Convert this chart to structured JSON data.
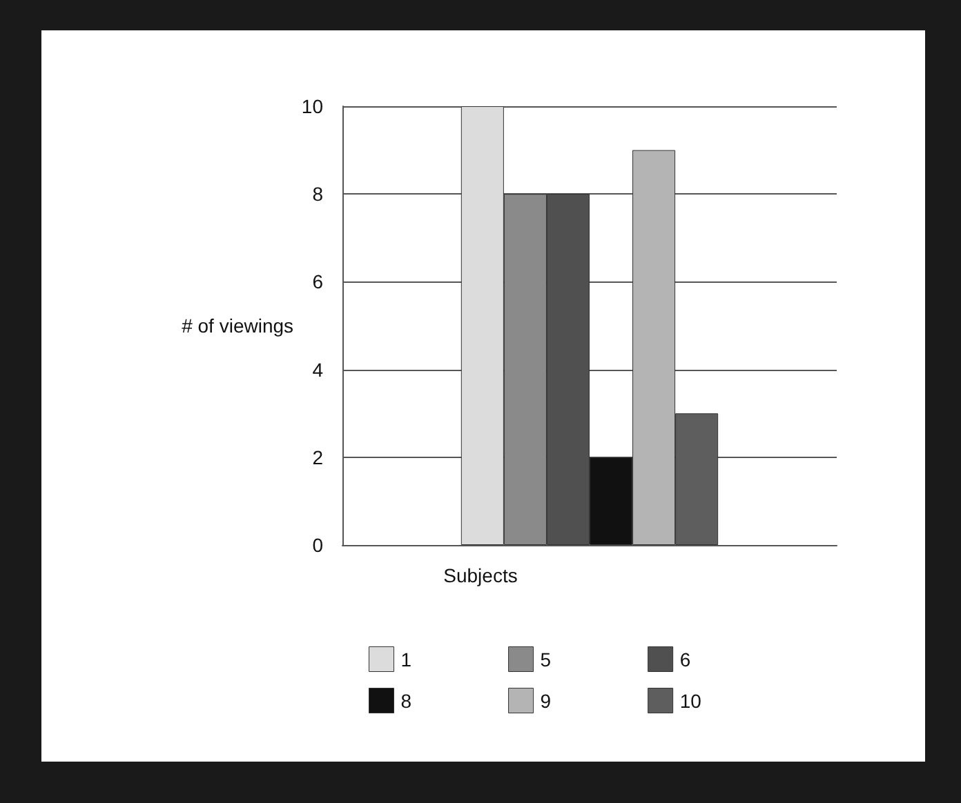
{
  "chart_data": {
    "type": "bar",
    "ylabel": "# of viewings",
    "legend_title": "Subjects",
    "categories": [
      null
    ],
    "series": [
      {
        "name": "1",
        "color": "#dcdcdc",
        "values": [
          10
        ]
      },
      {
        "name": "5",
        "color": "#8a8a8a",
        "values": [
          8
        ]
      },
      {
        "name": "6",
        "color": "#505050",
        "values": [
          8
        ]
      },
      {
        "name": "8",
        "color": "#111111",
        "values": [
          2
        ]
      },
      {
        "name": "9",
        "color": "#b4b4b4",
        "values": [
          9
        ]
      },
      {
        "name": "10",
        "color": "#5e5e5e",
        "values": [
          3
        ]
      }
    ],
    "ylim": [
      0,
      10
    ],
    "yticks": [
      0,
      2,
      4,
      6,
      8,
      10
    ],
    "grid": "y",
    "legend": "bottom"
  }
}
